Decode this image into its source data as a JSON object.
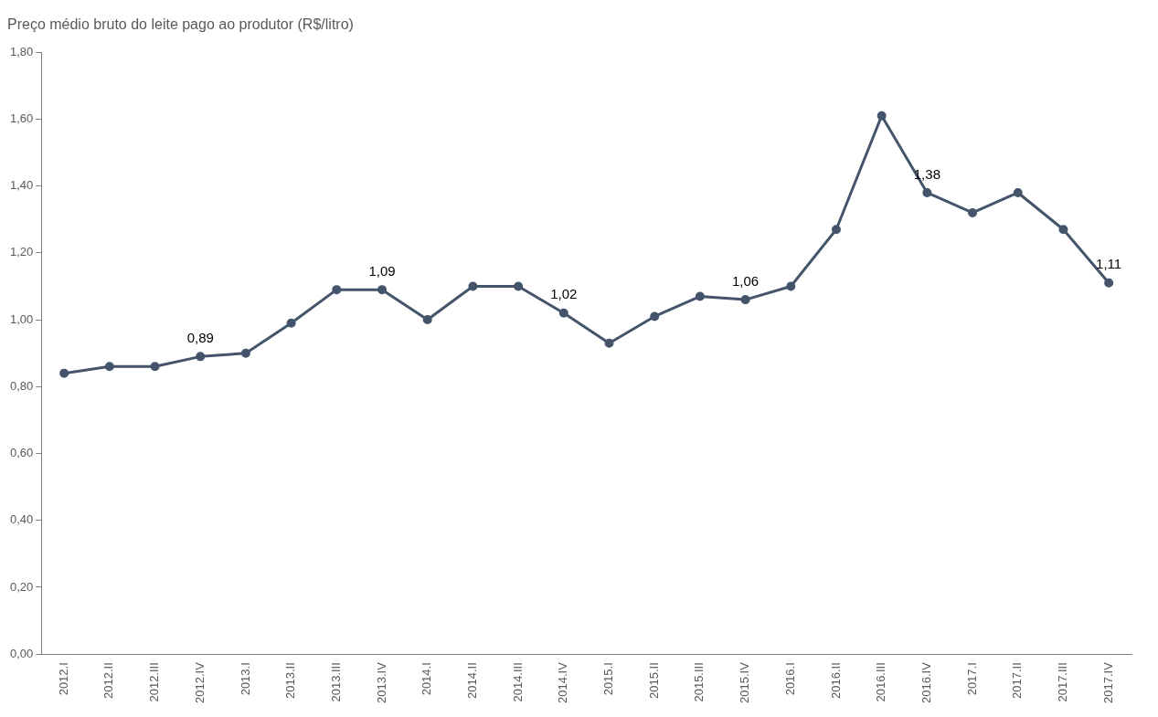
{
  "chart_data": {
    "type": "line",
    "title": "Preço médio bruto do leite pago ao produtor (R$/litro)",
    "categories": [
      "2012.I",
      "2012.II",
      "2012.III",
      "2012.IV",
      "2013.I",
      "2013.II",
      "2013.III",
      "2013.IV",
      "2014.I",
      "2014.II",
      "2014.III",
      "2014.IV",
      "2015.I",
      "2015.II",
      "2015.III",
      "2015.IV",
      "2016.I",
      "2016.II",
      "2016.III",
      "2016.IV",
      "2017.I",
      "2017.II",
      "2017.III",
      "2017.IV"
    ],
    "series": [
      {
        "color": "#44546a",
        "values": [
          0.84,
          0.86,
          0.86,
          0.89,
          0.9,
          0.99,
          1.09,
          1.09,
          1.0,
          1.1,
          1.1,
          1.02,
          0.93,
          1.01,
          1.07,
          1.06,
          1.1,
          1.27,
          1.61,
          1.38,
          1.32,
          1.38,
          1.27,
          1.11
        ],
        "value_labels": [
          null,
          null,
          null,
          "0,89",
          null,
          null,
          null,
          "1,09",
          null,
          null,
          null,
          "1,02",
          null,
          null,
          null,
          "1,06",
          null,
          null,
          null,
          "1,38",
          null,
          null,
          null,
          "1,11"
        ]
      }
    ],
    "ylim": [
      0,
      1.8
    ],
    "yticks": [
      {
        "value": 0,
        "label": "0,00"
      },
      {
        "value": 0.2,
        "label": "0,20"
      },
      {
        "value": 0.4,
        "label": "0,40"
      },
      {
        "value": 0.6,
        "label": "0,60"
      },
      {
        "value": 0.8,
        "label": "0,80"
      },
      {
        "value": 1.0,
        "label": "1,00"
      },
      {
        "value": 1.2,
        "label": "1,20"
      },
      {
        "value": 1.4,
        "label": "1,40"
      },
      {
        "value": 1.6,
        "label": "1,60"
      },
      {
        "value": 1.8,
        "label": "1,80"
      }
    ],
    "grid": false,
    "legend": false,
    "marker": "circle",
    "line_style": "solid"
  }
}
